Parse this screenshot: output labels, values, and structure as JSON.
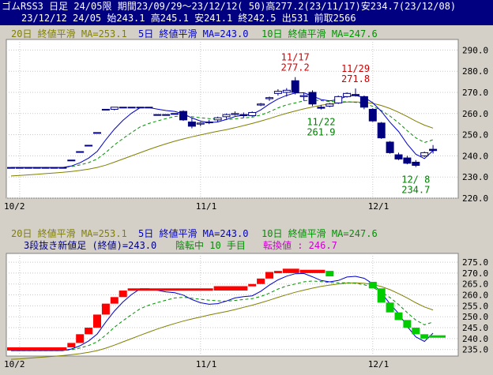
{
  "header": {
    "line1": "ゴムRSS3 日足 24/05限 期間23/09/29～23/12/12( 50)高277.2(23/11/17)安234.7(23/12/08)",
    "line2": "23/12/12 24/05 始243.1 高245.1 安241.1 終242.5 出531 前取2566"
  },
  "legend1": {
    "ma20": "20日 終値平滑 MA=253.1",
    "ma5": "5日 終値平滑 MA=243.0",
    "ma10": "10日 終値平滑 MA=247.6"
  },
  "legend2": {
    "ma20": "20日 終値平滑 MA=253.1",
    "ma5": "5日 終値平滑 MA=243.0",
    "ma10": "10日 終値平滑 MA=247.6",
    "renko": "3段抜き新値足 (終値)=243.0",
    "status": "陰転中 10 手目",
    "reversal": "転換値 : 246.7"
  },
  "colors": {
    "header_bg": "#000080",
    "plot_bg": "#ffffff",
    "candle": "#000080",
    "ma5": "#0000cc",
    "ma10": "#009000",
    "ma20": "#808000",
    "annotation_red": "#cc0000",
    "annotation_green": "#008000",
    "renko_up": "#ff0000",
    "renko_down": "#00cc00"
  },
  "chart_data": [
    {
      "type": "candlestick",
      "ylim": [
        220,
        295
      ],
      "yticks": [
        "290.0",
        "280.0",
        "270.0",
        "260.0",
        "250.0",
        "240.0",
        "230.0",
        "220.0"
      ],
      "xticks": [
        {
          "label": "10/2",
          "x": "2023-10-02"
        },
        {
          "label": "11/1",
          "x": "2023-11-01"
        },
        {
          "label": "12/1",
          "x": "2023-12-01"
        }
      ],
      "candles": [
        {
          "d": "2023-09-29",
          "o": 234.5,
          "h": 234.5,
          "l": 234.5,
          "c": 234.5
        },
        {
          "d": "2023-10-02",
          "o": 234.5,
          "h": 234.5,
          "l": 234.5,
          "c": 234.5
        },
        {
          "d": "2023-10-03",
          "o": 234.5,
          "h": 234.5,
          "l": 234.5,
          "c": 234.5
        },
        {
          "d": "2023-10-04",
          "o": 234.5,
          "h": 234.5,
          "l": 234.5,
          "c": 234.5
        },
        {
          "d": "2023-10-05",
          "o": 234.5,
          "h": 234.5,
          "l": 234.5,
          "c": 234.5
        },
        {
          "d": "2023-10-06",
          "o": 234.5,
          "h": 234.5,
          "l": 234.5,
          "c": 234.5
        },
        {
          "d": "2023-10-10",
          "o": 234.5,
          "h": 234.5,
          "l": 234.5,
          "c": 234.5
        },
        {
          "d": "2023-10-11",
          "o": 238.0,
          "h": 238.0,
          "l": 238.0,
          "c": 238.0
        },
        {
          "d": "2023-10-12",
          "o": 242.0,
          "h": 242.0,
          "l": 242.0,
          "c": 242.0
        },
        {
          "d": "2023-10-13",
          "o": 245.0,
          "h": 245.0,
          "l": 245.0,
          "c": 245.0
        },
        {
          "d": "2023-10-16",
          "o": 251.0,
          "h": 251.0,
          "l": 251.0,
          "c": 251.0
        },
        {
          "d": "2023-10-17",
          "o": 262.0,
          "h": 262.0,
          "l": 262.0,
          "c": 262.0
        },
        {
          "d": "2023-10-18",
          "o": 262.0,
          "h": 263.0,
          "l": 261.5,
          "c": 263.0
        },
        {
          "d": "2023-10-19",
          "o": 263.0,
          "h": 263.0,
          "l": 263.0,
          "c": 263.0
        },
        {
          "d": "2023-10-20",
          "o": 263.0,
          "h": 263.0,
          "l": 263.0,
          "c": 263.0
        },
        {
          "d": "2023-10-23",
          "o": 263.0,
          "h": 263.0,
          "l": 263.0,
          "c": 263.0
        },
        {
          "d": "2023-10-24",
          "o": 263.0,
          "h": 263.0,
          "l": 263.0,
          "c": 263.0
        },
        {
          "d": "2023-10-25",
          "o": 259.5,
          "h": 259.5,
          "l": 259.5,
          "c": 259.5
        },
        {
          "d": "2023-10-26",
          "o": 259.5,
          "h": 259.5,
          "l": 259.5,
          "c": 259.5
        },
        {
          "d": "2023-10-27",
          "o": 260.0,
          "h": 260.0,
          "l": 260.0,
          "c": 260.0
        },
        {
          "d": "2023-10-30",
          "o": 261.0,
          "h": 261.5,
          "l": 256.5,
          "c": 257.0
        },
        {
          "d": "2023-10-31",
          "o": 256.0,
          "h": 258.0,
          "l": 253.0,
          "c": 254.0
        },
        {
          "d": "2023-11-01",
          "o": 255.0,
          "h": 256.0,
          "l": 254.0,
          "c": 255.5
        },
        {
          "d": "2023-11-02",
          "o": 256.0,
          "h": 257.0,
          "l": 255.0,
          "c": 256.0
        },
        {
          "d": "2023-11-06",
          "o": 257.0,
          "h": 258.5,
          "l": 256.0,
          "c": 258.0
        },
        {
          "d": "2023-11-07",
          "o": 258.5,
          "h": 260.0,
          "l": 257.5,
          "c": 259.5
        },
        {
          "d": "2023-11-08",
          "o": 259.5,
          "h": 261.0,
          "l": 259.0,
          "c": 260.0
        },
        {
          "d": "2023-11-09",
          "o": 259.5,
          "h": 260.5,
          "l": 258.0,
          "c": 259.0
        },
        {
          "d": "2023-11-10",
          "o": 259.0,
          "h": 261.0,
          "l": 258.5,
          "c": 260.5
        },
        {
          "d": "2023-11-13",
          "o": 264.0,
          "h": 265.0,
          "l": 263.5,
          "c": 264.5
        },
        {
          "d": "2023-11-14",
          "o": 267.0,
          "h": 268.0,
          "l": 266.0,
          "c": 267.5
        },
        {
          "d": "2023-11-15",
          "o": 269.5,
          "h": 271.5,
          "l": 268.5,
          "c": 270.5
        },
        {
          "d": "2023-11-16",
          "o": 270.0,
          "h": 272.0,
          "l": 268.0,
          "c": 271.0
        },
        {
          "d": "2023-11-17",
          "o": 275.5,
          "h": 277.2,
          "l": 269.0,
          "c": 270.0
        },
        {
          "d": "2023-11-20",
          "o": 268.0,
          "h": 270.0,
          "l": 266.0,
          "c": 268.5
        },
        {
          "d": "2023-11-21",
          "o": 270.0,
          "h": 271.0,
          "l": 263.5,
          "c": 264.5
        },
        {
          "d": "2023-11-22",
          "o": 263.0,
          "h": 264.0,
          "l": 261.9,
          "c": 262.5
        },
        {
          "d": "2023-11-24",
          "o": 263.5,
          "h": 265.0,
          "l": 263.0,
          "c": 264.5
        },
        {
          "d": "2023-11-27",
          "o": 265.0,
          "h": 268.5,
          "l": 264.5,
          "c": 268.0
        },
        {
          "d": "2023-11-28",
          "o": 268.0,
          "h": 270.0,
          "l": 267.5,
          "c": 269.5
        },
        {
          "d": "2023-11-29",
          "o": 269.0,
          "h": 271.8,
          "l": 268.0,
          "c": 268.5
        },
        {
          "d": "2023-11-30",
          "o": 268.0,
          "h": 268.5,
          "l": 262.0,
          "c": 263.0
        },
        {
          "d": "2023-12-01",
          "o": 262.0,
          "h": 262.5,
          "l": 256.0,
          "c": 256.5
        },
        {
          "d": "2023-12-04",
          "o": 255.5,
          "h": 256.0,
          "l": 248.0,
          "c": 248.5
        },
        {
          "d": "2023-12-05",
          "o": 246.5,
          "h": 247.0,
          "l": 241.0,
          "c": 241.5
        },
        {
          "d": "2023-12-06",
          "o": 240.5,
          "h": 241.5,
          "l": 238.0,
          "c": 238.5
        },
        {
          "d": "2023-12-07",
          "o": 239.0,
          "h": 240.0,
          "l": 236.0,
          "c": 236.5
        },
        {
          "d": "2023-12-08",
          "o": 237.0,
          "h": 238.0,
          "l": 234.7,
          "c": 235.5
        },
        {
          "d": "2023-12-11",
          "o": 240.0,
          "h": 242.0,
          "l": 239.5,
          "c": 241.5
        },
        {
          "d": "2023-12-12",
          "o": 243.1,
          "h": 245.1,
          "l": 241.1,
          "c": 242.5
        }
      ],
      "ma5": [
        234.5,
        234.5,
        234.5,
        234.5,
        234.5,
        234.5,
        234.5,
        235.2,
        236.7,
        238.9,
        242.1,
        247.6,
        252.6,
        256.8,
        260.2,
        262.8,
        262.8,
        262.1,
        261.4,
        261.0,
        259.9,
        257.9,
        256.4,
        255.7,
        256.0,
        257.2,
        258.6,
        259.2,
        259.6,
        261.7,
        264.5,
        266.9,
        268.6,
        269.7,
        269.8,
        268.3,
        266.6,
        266.0,
        266.6,
        268.2,
        268.5,
        267.6,
        265.1,
        261.0,
        255.9,
        251.5,
        245.6,
        240.8,
        238.7,
        242.5
      ],
      "ma10": [
        234.5,
        234.5,
        234.5,
        234.5,
        234.5,
        234.5,
        234.5,
        234.9,
        235.7,
        236.8,
        238.5,
        241.6,
        245.2,
        248.2,
        251.0,
        253.7,
        255.3,
        256.5,
        257.6,
        258.6,
        258.9,
        258.5,
        258.0,
        257.6,
        257.3,
        257.1,
        257.5,
        257.9,
        258.3,
        259.3,
        260.8,
        262.7,
        264.1,
        265.0,
        266.0,
        266.4,
        266.1,
        265.7,
        265.5,
        265.6,
        265.3,
        264.7,
        263.4,
        261.4,
        258.8,
        255.6,
        251.9,
        248.5,
        246.3,
        247.6
      ],
      "ma20": [
        230.5,
        230.7,
        231.0,
        231.3,
        231.6,
        231.9,
        232.2,
        232.6,
        233.1,
        233.7,
        234.5,
        235.6,
        237.0,
        238.5,
        240.0,
        241.5,
        243.0,
        244.4,
        245.7,
        246.9,
        248.0,
        249.0,
        249.9,
        250.8,
        251.6,
        252.4,
        253.3,
        254.3,
        255.3,
        256.4,
        257.6,
        258.9,
        260.1,
        261.2,
        262.2,
        263.1,
        263.9,
        264.5,
        265.0,
        265.4,
        265.5,
        265.3,
        264.8,
        263.8,
        262.4,
        260.6,
        258.6,
        256.4,
        254.5,
        253.1
      ],
      "annotations": [
        {
          "date": "11/17",
          "value": "277.2",
          "type": "high"
        },
        {
          "date": "11/29",
          "value": "271.8",
          "type": "high"
        },
        {
          "date": "11/22",
          "value": "261.9",
          "type": "low"
        },
        {
          "date": "12/ 8",
          "value": "234.7",
          "type": "low"
        }
      ]
    },
    {
      "type": "renko",
      "ylim": [
        232,
        279
      ],
      "yticks": [
        "275.0",
        "270.0",
        "265.0",
        "260.0",
        "255.0",
        "250.0",
        "245.0",
        "240.0",
        "235.0"
      ],
      "xticks": [
        {
          "label": "10/2",
          "x": "2023-10-02"
        },
        {
          "label": "11/1",
          "x": "2023-11-01"
        },
        {
          "label": "12/1",
          "x": "2023-12-01"
        }
      ],
      "series": [
        {
          "name": "3段抜き新値足 (終値)",
          "bricks": [
            {
              "dir": "up",
              "lo": 234.5,
              "hi": 236.0,
              "day": 0,
              "days": 7
            },
            {
              "dir": "up",
              "lo": 236.0,
              "hi": 238.0,
              "day": 7,
              "days": 1
            },
            {
              "dir": "up",
              "lo": 238.0,
              "hi": 242.0,
              "day": 8,
              "days": 1
            },
            {
              "dir": "up",
              "lo": 242.0,
              "hi": 245.0,
              "day": 9,
              "days": 1
            },
            {
              "dir": "up",
              "lo": 245.0,
              "hi": 251.0,
              "day": 10,
              "days": 1
            },
            {
              "dir": "up",
              "lo": 251.0,
              "hi": 256.0,
              "day": 11,
              "days": 1
            },
            {
              "dir": "up",
              "lo": 256.0,
              "hi": 259.0,
              "day": 12,
              "days": 1
            },
            {
              "dir": "up",
              "lo": 259.0,
              "hi": 262.0,
              "day": 13,
              "days": 1
            },
            {
              "dir": "up",
              "lo": 262.0,
              "hi": 263.0,
              "day": 14,
              "days": 10
            },
            {
              "dir": "up",
              "lo": 262.0,
              "hi": 264.0,
              "day": 24,
              "days": 4
            },
            {
              "dir": "up",
              "lo": 264.0,
              "hi": 265.0,
              "day": 28,
              "days": 1
            },
            {
              "dir": "up",
              "lo": 265.0,
              "hi": 267.5,
              "day": 29,
              "days": 1
            },
            {
              "dir": "up",
              "lo": 267.5,
              "hi": 270.5,
              "day": 30,
              "days": 1
            },
            {
              "dir": "up",
              "lo": 270.5,
              "hi": 271.0,
              "day": 31,
              "days": 1
            },
            {
              "dir": "up",
              "lo": 270.0,
              "hi": 272.0,
              "day": 32,
              "days": 2
            },
            {
              "dir": "up",
              "lo": 270.0,
              "hi": 271.5,
              "day": 34,
              "days": 3
            },
            {
              "dir": "down",
              "lo": 268.5,
              "hi": 271.0,
              "day": 37,
              "days": 1
            },
            {
              "dir": "down",
              "lo": 263.0,
              "hi": 266.0,
              "day": 42,
              "days": 1
            },
            {
              "dir": "down",
              "lo": 256.5,
              "hi": 263.0,
              "day": 43,
              "days": 1
            },
            {
              "dir": "down",
              "lo": 252.0,
              "hi": 256.5,
              "day": 44,
              "days": 1
            },
            {
              "dir": "down",
              "lo": 248.5,
              "hi": 252.0,
              "day": 45,
              "days": 1
            },
            {
              "dir": "down",
              "lo": 245.0,
              "hi": 248.5,
              "day": 46,
              "days": 1
            },
            {
              "dir": "down",
              "lo": 242.0,
              "hi": 245.0,
              "day": 47,
              "days": 1
            },
            {
              "dir": "down",
              "lo": 240.0,
              "hi": 242.0,
              "day": 48,
              "days": 1
            },
            {
              "dir": "down",
              "lo": 240.5,
              "hi": 241.5,
              "day": 49,
              "days": 2
            }
          ]
        }
      ]
    }
  ]
}
